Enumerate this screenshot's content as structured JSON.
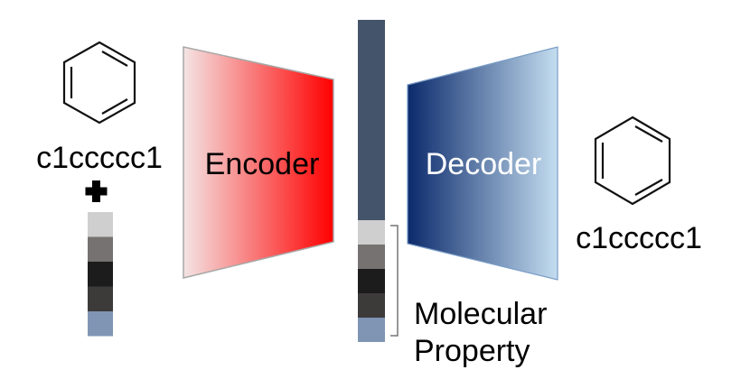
{
  "input": {
    "molecule_icon": "benzene-ring-icon",
    "smiles": "c1ccccc1",
    "plus_icon": "plus-icon",
    "property_vector_colors": [
      "#cfcfcf",
      "#777272",
      "#1c1c1c",
      "#3d3a3a",
      "#7f95b3"
    ]
  },
  "encoder": {
    "label": "Encoder",
    "gradient": [
      "#f4e4e4",
      "#ff0000"
    ]
  },
  "latent": {
    "color": "#44546a",
    "property_segment_colors": [
      "#cfcfcf",
      "#777272",
      "#1c1c1c",
      "#3d3a3a",
      "#7f95b3"
    ],
    "property_label_line1": "Molecular",
    "property_label_line2": "Property"
  },
  "decoder": {
    "label": "Decoder",
    "gradient": [
      "#0b2a6b",
      "#c4ddf0"
    ]
  },
  "output": {
    "molecule_icon": "benzene-ring-icon",
    "smiles": "c1ccccc1"
  }
}
